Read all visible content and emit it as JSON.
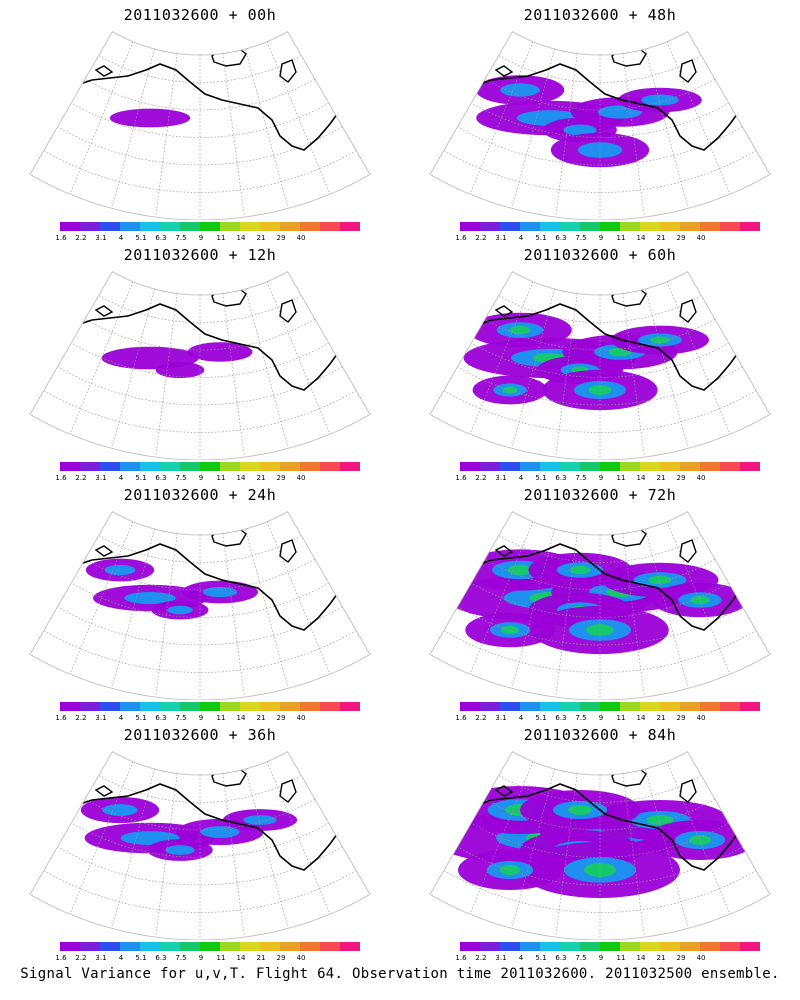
{
  "figure": {
    "caption": "Signal Variance for u,v,T. Flight 64. Observation time 2011032600. 2011032500 ensemble."
  },
  "colorbar": {
    "colors": [
      "#9b00d8",
      "#7b1fd8",
      "#2f4df0",
      "#1f8ff0",
      "#18c0e8",
      "#18d0b0",
      "#16c86c",
      "#10c810",
      "#9cd820",
      "#d8d820",
      "#e8c020",
      "#e8a028",
      "#f07830",
      "#f84850",
      "#f01880"
    ],
    "tick_labels": [
      "1.6",
      "2.2",
      "3.1",
      "4",
      "5.1",
      "6.3",
      "7.5",
      "9",
      "11",
      "14",
      "21",
      "29",
      "40"
    ]
  },
  "panels": [
    {
      "title": "2011032600 + 00h",
      "lead_hours": 0,
      "intensity": 0.05
    },
    {
      "title": "2011032600 + 48h",
      "lead_hours": 48,
      "intensity": 0.45
    },
    {
      "title": "2011032600 + 12h",
      "lead_hours": 12,
      "intensity": 0.15
    },
    {
      "title": "2011032600 + 60h",
      "lead_hours": 60,
      "intensity": 0.6
    },
    {
      "title": "2011032600 + 24h",
      "lead_hours": 24,
      "intensity": 0.25
    },
    {
      "title": "2011032600 + 72h",
      "lead_hours": 72,
      "intensity": 0.8
    },
    {
      "title": "2011032600 + 36h",
      "lead_hours": 36,
      "intensity": 0.35
    },
    {
      "title": "2011032600 + 84h",
      "lead_hours": 84,
      "intensity": 1.0
    }
  ]
}
